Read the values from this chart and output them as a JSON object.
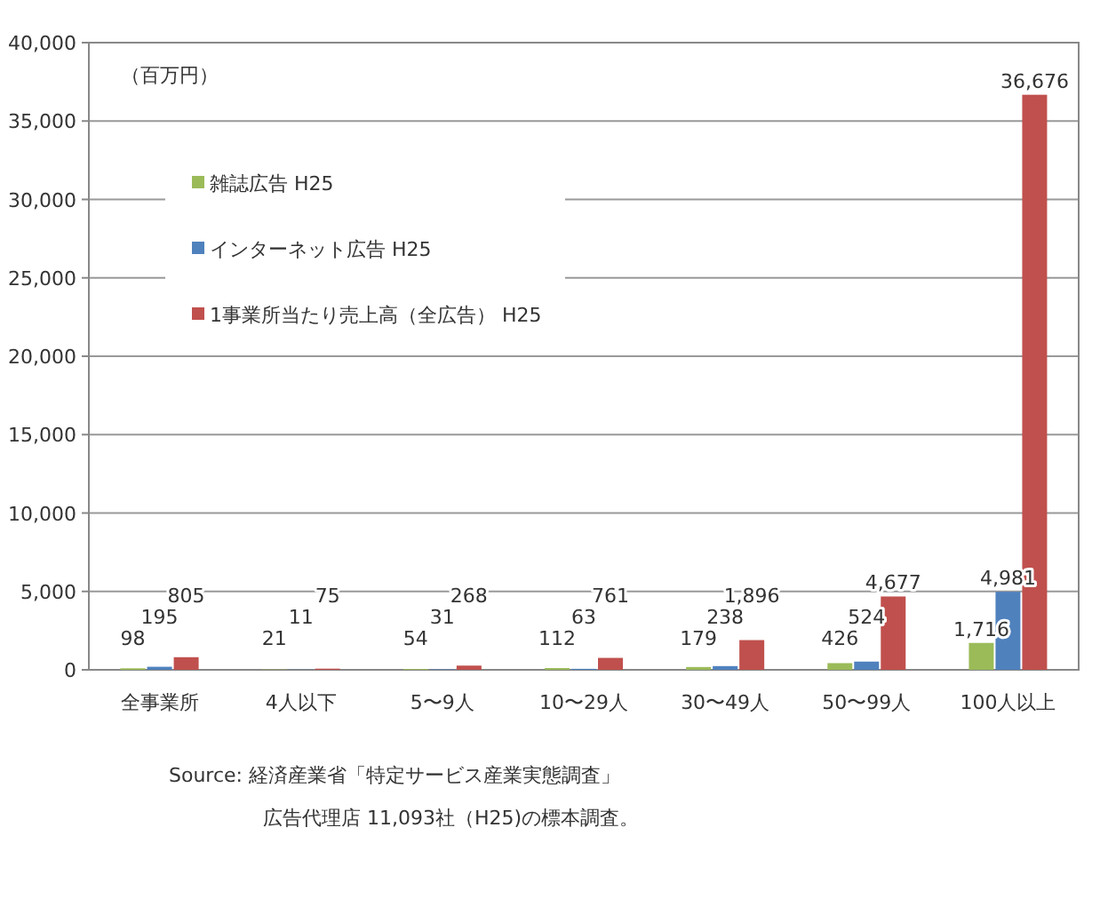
{
  "chart_data": {
    "type": "bar",
    "categories": [
      "全事業所",
      "4人以下",
      "5〜9人",
      "10〜29人",
      "30〜49人",
      "50〜99人",
      "100人以上"
    ],
    "series": [
      {
        "name": "雑誌広告 H25",
        "color": "#9bbb59",
        "values": [
          98,
          21,
          54,
          112,
          179,
          426,
          1716
        ],
        "value_labels": [
          "98",
          "21",
          "54",
          "112",
          "179",
          "426",
          "1,716"
        ]
      },
      {
        "name": "インターネット広告 H25",
        "color": "#4f81bd",
        "values": [
          195,
          11,
          31,
          63,
          238,
          524,
          4981
        ],
        "value_labels": [
          "195",
          "11",
          "31",
          "63",
          "238",
          "524",
          "4,981"
        ]
      },
      {
        "name": "1事業所当たり売上高（全広告） H25",
        "color": "#c0504d",
        "values": [
          805,
          75,
          268,
          761,
          1896,
          4677,
          36676
        ],
        "value_labels": [
          "805",
          "75",
          "268",
          "761",
          "1,896",
          "4,677",
          "36,676"
        ]
      }
    ],
    "ylim": [
      0,
      40000
    ],
    "yticks": [
      0,
      {
        "value": 5000,
        "label": "5,000"
      },
      {
        "value": 10000,
        "label": "10,000"
      },
      {
        "value": 15000,
        "label": "15,000"
      },
      {
        "value": 20000,
        "label": "20,000"
      },
      {
        "value": 25000,
        "label": "25,000"
      },
      {
        "value": 30000,
        "label": "30,000"
      },
      {
        "value": 35000,
        "label": "35,000"
      },
      {
        "value": 40000,
        "label": "40,000"
      }
    ],
    "grid": "y",
    "legend": "left",
    "annotations": [
      "（百万円）",
      "Source:  経済産業省「特定サービス産業実態調査」",
      "広告代理店  11,093社（H25)の標本調査。"
    ]
  }
}
